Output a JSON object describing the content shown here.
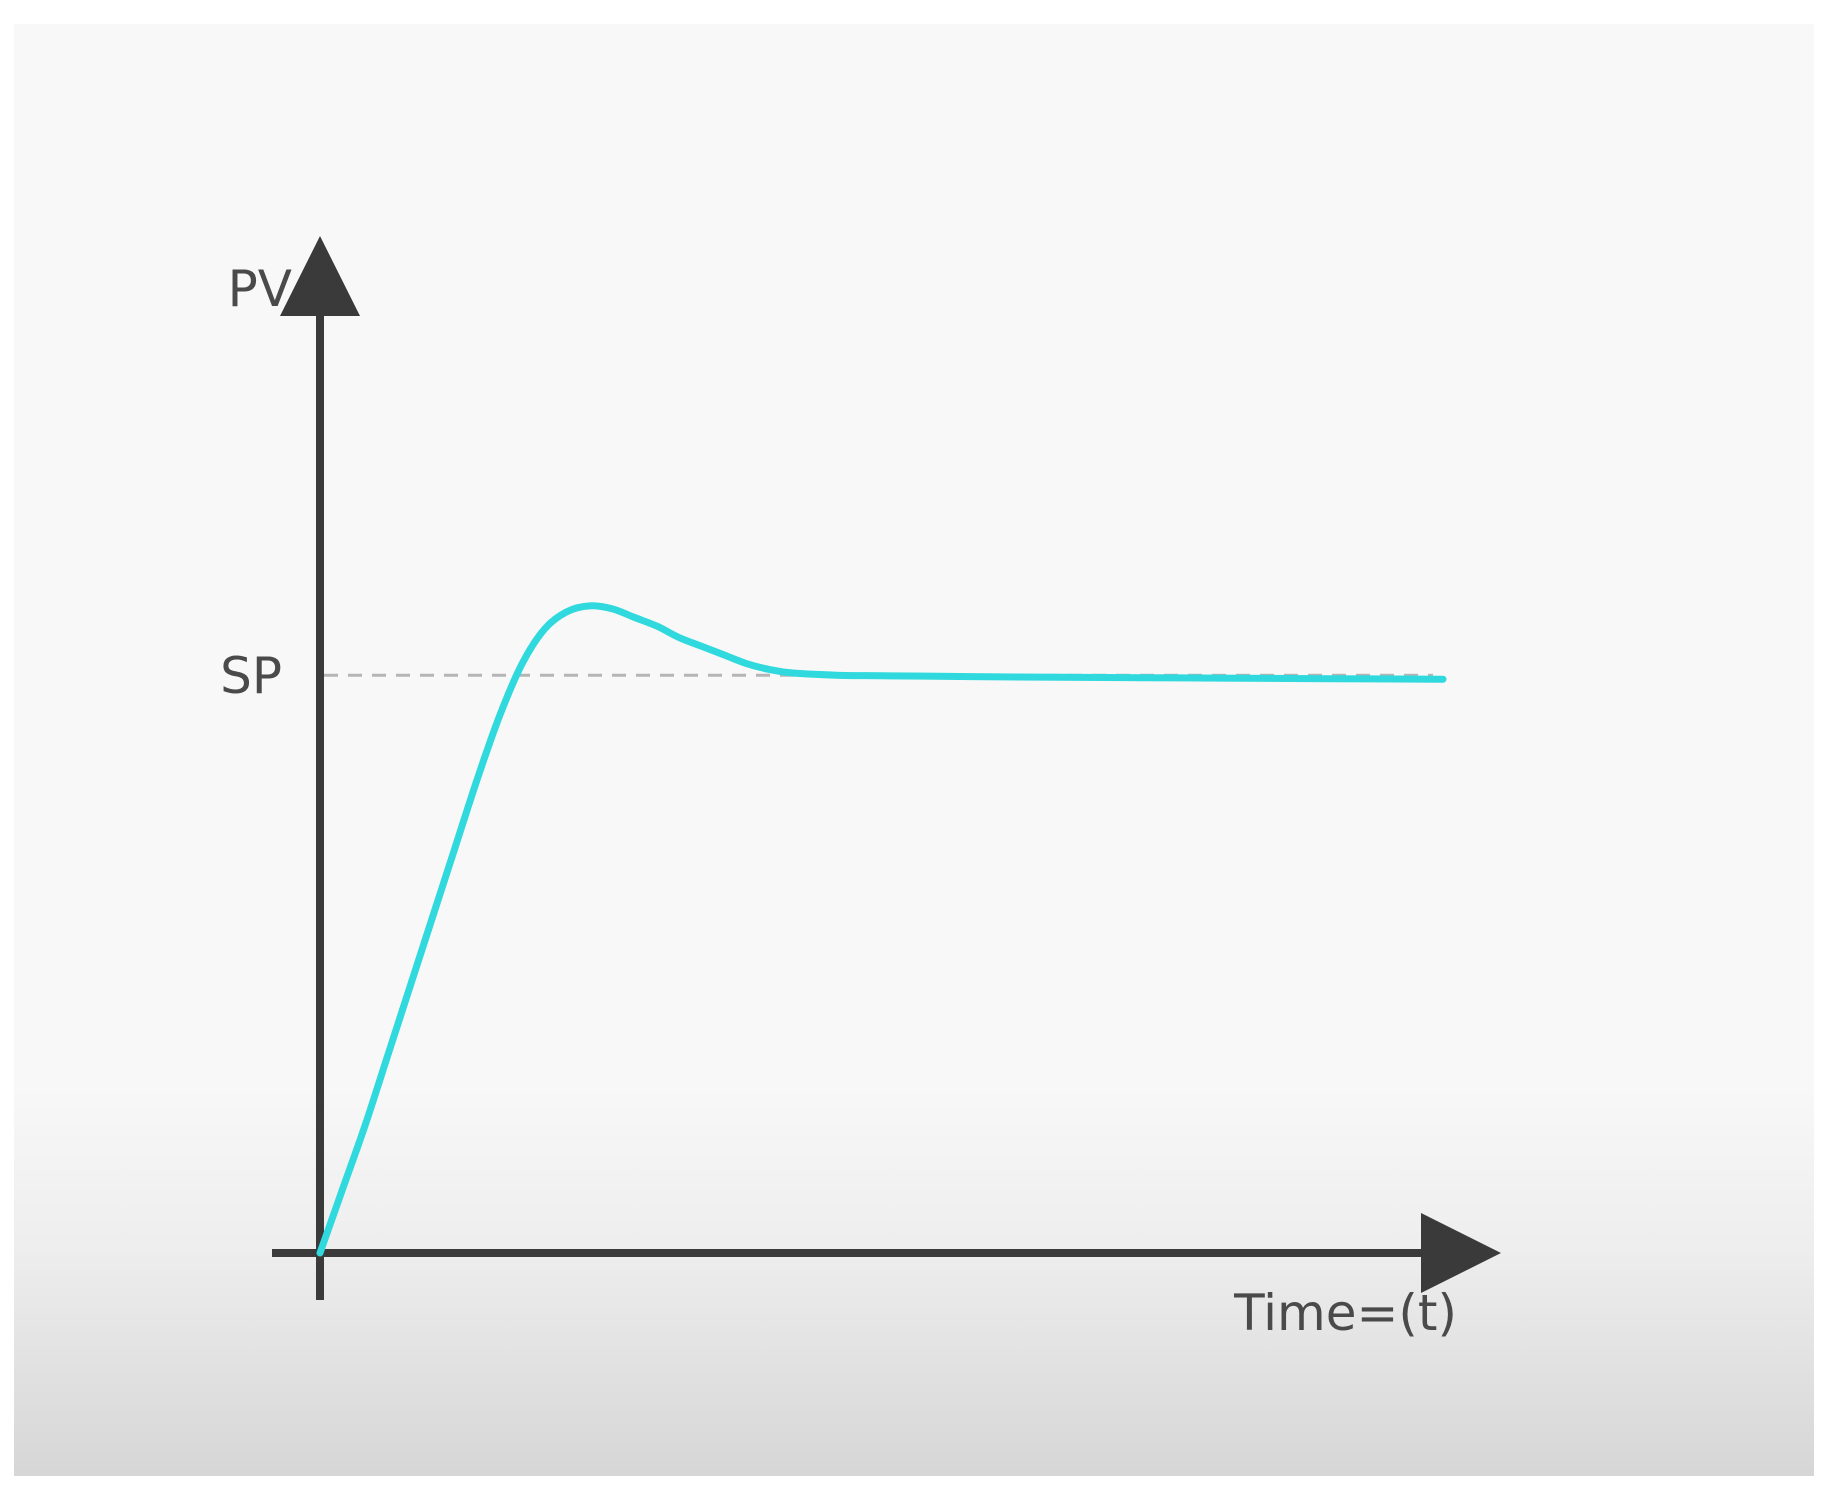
{
  "chart_data": {
    "type": "line",
    "ylabel": "PV",
    "xlabel": "Time=(t)",
    "reference_lines": [
      {
        "label": "SP",
        "y": 1.0,
        "style": "dashed",
        "color": "#b5b5b5"
      }
    ],
    "series": [
      {
        "color": "#2fd9dd",
        "x": [
          0,
          2,
          4,
          6,
          8,
          10,
          12,
          14,
          16,
          18,
          20,
          22,
          24,
          26,
          28,
          30,
          32,
          34,
          36,
          38,
          40,
          42,
          46,
          50,
          56,
          62,
          70,
          80,
          90,
          100
        ],
        "y": [
          0,
          0.11,
          0.22,
          0.34,
          0.46,
          0.58,
          0.7,
          0.82,
          0.93,
          1.02,
          1.08,
          1.11,
          1.12,
          1.115,
          1.1,
          1.085,
          1.065,
          1.05,
          1.035,
          1.02,
          1.01,
          1.004,
          1.0,
          0.999,
          0.998,
          0.997,
          0.996,
          0.995,
          0.994,
          0.993
        ]
      }
    ],
    "xlim": [
      0,
      100
    ],
    "ylim": [
      0,
      1.8
    ],
    "grid": false,
    "axis_color": "#3a3a3a"
  }
}
